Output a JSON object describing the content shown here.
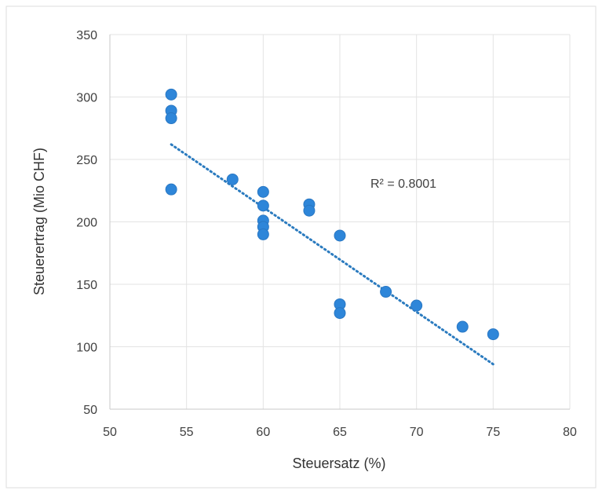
{
  "chart_data": {
    "type": "scatter",
    "xlabel": "Steuersatz (%)",
    "ylabel": "Steuerertrag (Mio CHF)",
    "xlim": [
      50,
      80
    ],
    "ylim": [
      50,
      350
    ],
    "xticks": [
      50,
      55,
      60,
      65,
      70,
      75,
      80
    ],
    "yticks": [
      50,
      100,
      150,
      200,
      250,
      300,
      350
    ],
    "grid": true,
    "points": [
      {
        "x": 54,
        "y": 302
      },
      {
        "x": 54,
        "y": 289
      },
      {
        "x": 54,
        "y": 283
      },
      {
        "x": 54,
        "y": 226
      },
      {
        "x": 58,
        "y": 234
      },
      {
        "x": 60,
        "y": 224
      },
      {
        "x": 60,
        "y": 213
      },
      {
        "x": 60,
        "y": 201
      },
      {
        "x": 60,
        "y": 196
      },
      {
        "x": 60,
        "y": 190
      },
      {
        "x": 63,
        "y": 214
      },
      {
        "x": 63,
        "y": 209
      },
      {
        "x": 65,
        "y": 189
      },
      {
        "x": 65,
        "y": 134
      },
      {
        "x": 65,
        "y": 127
      },
      {
        "x": 68,
        "y": 144
      },
      {
        "x": 70,
        "y": 133
      },
      {
        "x": 73,
        "y": 116
      },
      {
        "x": 75,
        "y": 110
      }
    ],
    "trendline": {
      "x": [
        54,
        75
      ],
      "y": [
        262,
        86
      ],
      "style": "dotted",
      "label": "R² = 0.8001"
    },
    "colors": {
      "points": "#2e86d9",
      "trendline": "#2b7bbf",
      "grid": "#e3e3e3",
      "axis": "#c8c8c8"
    }
  }
}
